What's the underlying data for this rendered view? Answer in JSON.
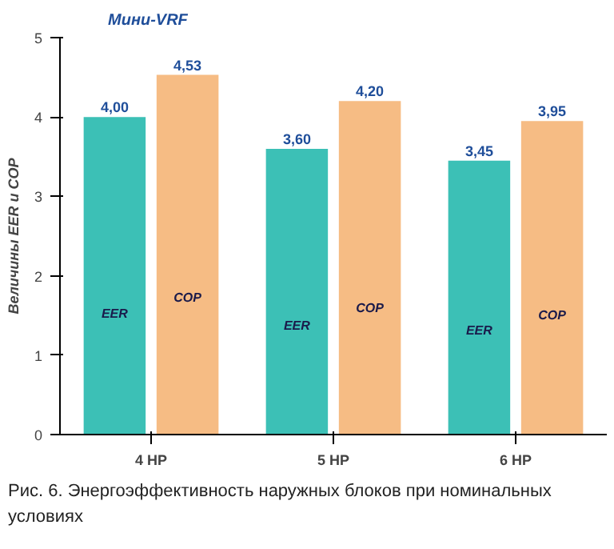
{
  "chart_data": {
    "type": "bar",
    "title": "Мини-VRF",
    "ylabel": "Величины EER и COP",
    "categories": [
      "4 HP",
      "5 HP",
      "6 HP"
    ],
    "series": [
      {
        "name": "EER",
        "color": "#3cc0b6",
        "values": [
          4.0,
          3.6,
          3.45
        ],
        "value_labels": [
          "4,00",
          "3,60",
          "3,45"
        ]
      },
      {
        "name": "COP",
        "color": "#f6bc84",
        "values": [
          4.53,
          4.2,
          3.95
        ],
        "value_labels": [
          "4,53",
          "4,20",
          "3,95"
        ]
      }
    ],
    "ylim": [
      0,
      5
    ],
    "yticks": [
      0,
      1,
      2,
      3,
      4,
      5
    ],
    "grid": false,
    "legend": false,
    "annotations": [
      "Рис. 6. Энергоэффективность наружных блоков при номинальных условиях"
    ]
  }
}
